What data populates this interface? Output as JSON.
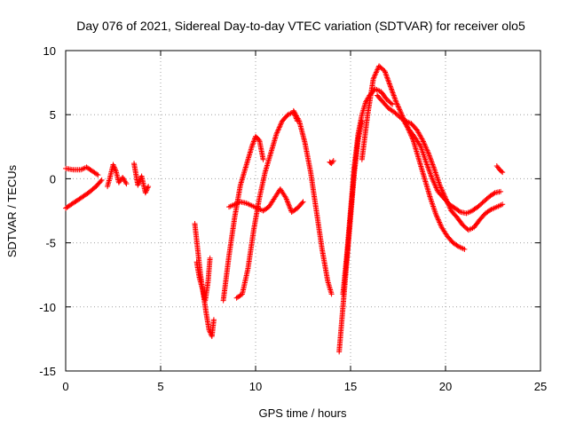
{
  "chart_data": {
    "type": "scatter",
    "title": "Day 076 of 2021, Sidereal Day-to-day VTEC variation (SDTVAR) for receiver olo5",
    "xlabel": "GPS time / hours",
    "ylabel": "SDTVAR / TECUs",
    "xlim": [
      0,
      25
    ],
    "ylim": [
      -15,
      10
    ],
    "xticks": [
      0,
      5,
      10,
      15,
      20,
      25
    ],
    "yticks": [
      -15,
      -10,
      -5,
      0,
      5,
      10
    ],
    "grid": true,
    "marker": "+",
    "color": "#ff0000",
    "series": [
      {
        "name": "arc-early-a",
        "x": [
          0.0,
          0.3,
          0.6,
          0.9,
          1.2,
          1.6,
          1.9
        ],
        "y": [
          -2.3,
          -2.0,
          -1.7,
          -1.4,
          -1.1,
          -0.6,
          -0.1
        ]
      },
      {
        "name": "arc-early-b",
        "x": [
          0.0,
          0.4,
          0.8,
          1.1,
          1.4,
          1.7
        ],
        "y": [
          0.8,
          0.7,
          0.7,
          0.9,
          0.6,
          0.3
        ]
      },
      {
        "name": "arc-early-c",
        "x": [
          2.2,
          2.35,
          2.5,
          2.65,
          2.8,
          3.0,
          3.2
        ],
        "y": [
          -0.6,
          0.2,
          1.1,
          0.6,
          -0.3,
          0.1,
          -0.4
        ]
      },
      {
        "name": "arc-early-d",
        "x": [
          3.6,
          3.8,
          4.0,
          4.2,
          4.35
        ],
        "y": [
          1.2,
          -0.5,
          0.2,
          -1.1,
          -0.6
        ]
      },
      {
        "name": "arc-dip",
        "x": [
          6.8,
          6.95,
          7.1,
          7.25,
          7.4,
          7.55,
          7.7,
          7.8
        ],
        "y": [
          -3.5,
          -5.5,
          -7.5,
          -9.0,
          -10.5,
          -11.8,
          -12.3,
          -11.0
        ]
      },
      {
        "name": "arc-dip-b",
        "x": [
          6.9,
          7.05,
          7.2,
          7.35,
          7.5,
          7.6
        ],
        "y": [
          -6.5,
          -7.8,
          -8.6,
          -9.5,
          -8.0,
          -6.2
        ]
      },
      {
        "name": "arc-rise-1",
        "x": [
          8.3,
          8.6,
          8.9,
          9.2,
          9.5,
          9.8,
          10.0,
          10.2,
          10.4
        ],
        "y": [
          -9.5,
          -6.0,
          -3.0,
          -0.5,
          1.0,
          2.5,
          3.3,
          3.0,
          1.5
        ]
      },
      {
        "name": "arc-rise-2",
        "x": [
          9.0,
          9.3,
          9.6,
          9.9,
          10.2,
          10.5,
          10.8,
          11.1,
          11.4,
          11.7,
          12.0,
          12.2
        ],
        "y": [
          -9.3,
          -9.0,
          -7.0,
          -4.0,
          -1.5,
          0.5,
          2.0,
          3.5,
          4.5,
          5.0,
          5.2,
          4.5
        ]
      },
      {
        "name": "arc-rise-3",
        "x": [
          8.6,
          8.9,
          9.2,
          9.5,
          9.8,
          10.1,
          10.4,
          10.7,
          11.0,
          11.3,
          11.6,
          11.9,
          12.2,
          12.5
        ],
        "y": [
          -2.2,
          -2.0,
          -1.8,
          -1.9,
          -2.1,
          -2.3,
          -2.5,
          -2.2,
          -1.5,
          -0.8,
          -1.5,
          -2.6,
          -2.3,
          -1.8
        ]
      },
      {
        "name": "arc-fall",
        "x": [
          12.0,
          12.3,
          12.6,
          12.9,
          13.2,
          13.5,
          13.8,
          14.0
        ],
        "y": [
          5.3,
          4.5,
          2.8,
          0.5,
          -2.5,
          -5.5,
          -8.0,
          -9.0
        ]
      },
      {
        "name": "arc-14",
        "x": [
          13.9,
          14.0,
          14.1
        ],
        "y": [
          1.3,
          1.2,
          1.4
        ]
      },
      {
        "name": "arc-rise-4",
        "x": [
          14.4,
          14.6,
          14.8,
          15.0,
          15.2,
          15.4,
          15.6
        ],
        "y": [
          -13.5,
          -10.0,
          -6.5,
          -3.0,
          0.5,
          3.0,
          4.5
        ]
      },
      {
        "name": "arc-rise-5",
        "x": [
          14.6,
          14.8,
          15.0,
          15.2,
          15.4,
          15.6,
          15.8,
          16.0,
          16.3,
          16.6,
          16.9,
          17.2
        ],
        "y": [
          -9.0,
          -6.0,
          -2.5,
          1.0,
          3.5,
          5.0,
          6.0,
          6.5,
          7.0,
          6.8,
          6.2,
          5.8
        ]
      },
      {
        "name": "arc-peak",
        "x": [
          15.6,
          15.9,
          16.2,
          16.5,
          16.8,
          17.1,
          17.4,
          17.7,
          18.0,
          18.3,
          18.6,
          18.9,
          19.2,
          19.5,
          19.8,
          20.1,
          20.4,
          20.7,
          21.0
        ],
        "y": [
          1.5,
          5.0,
          7.8,
          8.8,
          8.4,
          7.2,
          6.0,
          5.0,
          4.0,
          3.0,
          1.5,
          0.0,
          -1.5,
          -2.8,
          -3.8,
          -4.5,
          -5.0,
          -5.3,
          -5.5
        ]
      },
      {
        "name": "arc-mid-a",
        "x": [
          16.4,
          16.7,
          17.0,
          17.3,
          17.6,
          17.9,
          18.2,
          18.5,
          18.8,
          19.1,
          19.4,
          19.7,
          20.0,
          20.3,
          20.6,
          20.9,
          21.2,
          21.5,
          21.8,
          22.1,
          22.4,
          22.7,
          23.0
        ],
        "y": [
          6.5,
          6.0,
          5.5,
          5.2,
          4.8,
          4.5,
          4.3,
          3.8,
          3.0,
          2.0,
          0.8,
          -0.5,
          -1.5,
          -2.5,
          -3.0,
          -3.6,
          -4.0,
          -3.8,
          -3.2,
          -2.7,
          -2.4,
          -2.2,
          -2.0
        ]
      },
      {
        "name": "arc-mid-b",
        "x": [
          17.8,
          18.1,
          18.4,
          18.7,
          19.0,
          19.3,
          19.6,
          19.9,
          20.2,
          20.5,
          20.8,
          21.1,
          21.4,
          21.7,
          22.0,
          22.3,
          22.6,
          22.9
        ],
        "y": [
          4.5,
          3.8,
          3.2,
          2.5,
          1.2,
          0.0,
          -1.0,
          -1.5,
          -2.0,
          -2.3,
          -2.6,
          -2.7,
          -2.5,
          -2.2,
          -1.8,
          -1.4,
          -1.1,
          -1.0
        ]
      },
      {
        "name": "arc-late",
        "x": [
          22.7,
          22.85,
          23.0
        ],
        "y": [
          1.0,
          0.7,
          0.5
        ]
      }
    ]
  }
}
